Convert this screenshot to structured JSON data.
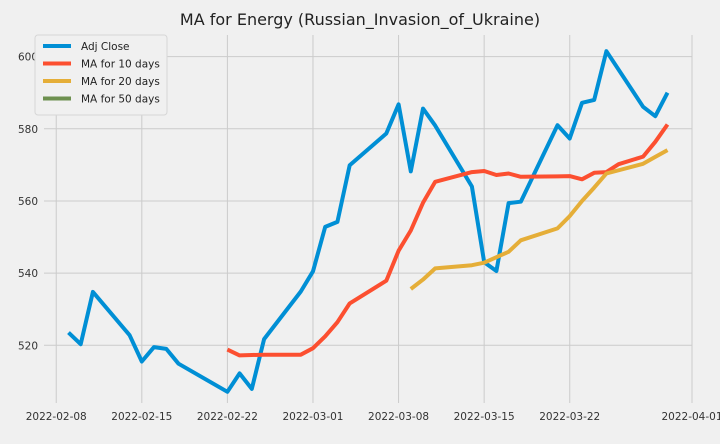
{
  "chart_data": {
    "type": "line",
    "title": "MA for Energy (Russian_Invasion_of_Ukraine)",
    "xlabel": "",
    "ylabel": "",
    "x_is_date": true,
    "xlim": [
      "2022-02-07",
      "2022-04-01"
    ],
    "ylim": [
      504,
      606
    ],
    "x_ticks": [
      "2022-02-08",
      "2022-02-15",
      "2022-02-22",
      "2022-03-01",
      "2022-03-08",
      "2022-03-15",
      "2022-03-22",
      "2022-04-01"
    ],
    "x_tick_labels": [
      "2022-02-08",
      "2022-02-15",
      "2022-02-22",
      "2022-03-01",
      "2022-03-08",
      "2022-03-15",
      "2022-03-22",
      "2022-04-01"
    ],
    "y_ticks": [
      520,
      540,
      560,
      580,
      600
    ],
    "y_tick_labels": [
      "520",
      "540",
      "560",
      "580",
      "600"
    ],
    "grid": true,
    "legend_position": "top-left",
    "series": [
      {
        "name": "Adj Close",
        "color": "#008fd5",
        "points": [
          [
            "2022-02-09",
            523.5
          ],
          [
            "2022-02-10",
            520.3
          ],
          [
            "2022-02-11",
            534.8
          ],
          [
            "2022-02-14",
            522.8
          ],
          [
            "2022-02-15",
            515.5
          ],
          [
            "2022-02-16",
            519.5
          ],
          [
            "2022-02-17",
            519.0
          ],
          [
            "2022-02-18",
            514.9
          ],
          [
            "2022-02-22",
            507.1
          ],
          [
            "2022-02-23",
            512.2
          ],
          [
            "2022-02-24",
            507.9
          ],
          [
            "2022-02-25",
            521.7
          ],
          [
            "2022-02-28",
            534.9
          ],
          [
            "2022-03-01",
            540.5
          ],
          [
            "2022-03-02",
            552.8
          ],
          [
            "2022-03-03",
            554.2
          ],
          [
            "2022-03-04",
            569.9
          ],
          [
            "2022-03-07",
            578.7
          ],
          [
            "2022-03-08",
            586.8
          ],
          [
            "2022-03-09",
            568.2
          ],
          [
            "2022-03-10",
            585.6
          ],
          [
            "2022-03-11",
            580.9
          ],
          [
            "2022-03-14",
            564.0
          ],
          [
            "2022-03-15",
            543.0
          ],
          [
            "2022-03-16",
            540.6
          ],
          [
            "2022-03-17",
            559.4
          ],
          [
            "2022-03-18",
            559.8
          ],
          [
            "2022-03-21",
            581.0
          ],
          [
            "2022-03-22",
            577.3
          ],
          [
            "2022-03-23",
            587.2
          ],
          [
            "2022-03-24",
            588.0
          ],
          [
            "2022-03-25",
            601.5
          ],
          [
            "2022-03-28",
            586.1
          ],
          [
            "2022-03-29",
            583.5
          ],
          [
            "2022-03-30",
            590.0
          ]
        ]
      },
      {
        "name": "MA for 10 days",
        "color": "#fc4f30",
        "points": [
          [
            "2022-02-22",
            518.8
          ],
          [
            "2022-02-23",
            517.2
          ],
          [
            "2022-02-24",
            517.3
          ],
          [
            "2022-02-25",
            517.4
          ],
          [
            "2022-02-28",
            517.4
          ],
          [
            "2022-03-01",
            519.2
          ],
          [
            "2022-03-02",
            522.5
          ],
          [
            "2022-03-03",
            526.4
          ],
          [
            "2022-03-04",
            531.6
          ],
          [
            "2022-03-07",
            537.9
          ],
          [
            "2022-03-08",
            546.2
          ],
          [
            "2022-03-09",
            551.8
          ],
          [
            "2022-03-10",
            559.5
          ],
          [
            "2022-03-11",
            565.3
          ],
          [
            "2022-03-14",
            568.0
          ],
          [
            "2022-03-15",
            568.3
          ],
          [
            "2022-03-16",
            567.2
          ],
          [
            "2022-03-17",
            567.6
          ],
          [
            "2022-03-18",
            566.7
          ],
          [
            "2022-03-21",
            566.8
          ],
          [
            "2022-03-22",
            566.9
          ],
          [
            "2022-03-23",
            566.0
          ],
          [
            "2022-03-24",
            567.8
          ],
          [
            "2022-03-25",
            568.0
          ],
          [
            "2022-03-26",
            570.2
          ],
          [
            "2022-03-28",
            572.3
          ],
          [
            "2022-03-29",
            576.4
          ],
          [
            "2022-03-30",
            581.2
          ]
        ]
      },
      {
        "name": "MA for 20 days",
        "color": "#e5ae38",
        "points": [
          [
            "2022-03-09",
            535.6
          ],
          [
            "2022-03-10",
            538.2
          ],
          [
            "2022-03-11",
            541.3
          ],
          [
            "2022-03-14",
            542.2
          ],
          [
            "2022-03-15",
            542.9
          ],
          [
            "2022-03-16",
            544.4
          ],
          [
            "2022-03-17",
            545.9
          ],
          [
            "2022-03-18",
            549.1
          ],
          [
            "2022-03-21",
            552.4
          ],
          [
            "2022-03-22",
            555.8
          ],
          [
            "2022-03-23",
            560.0
          ],
          [
            "2022-03-24",
            563.7
          ],
          [
            "2022-03-25",
            567.6
          ],
          [
            "2022-03-28",
            570.3
          ],
          [
            "2022-03-29",
            572.2
          ],
          [
            "2022-03-30",
            574.1
          ]
        ]
      },
      {
        "name": "MA for 50 days",
        "color": "#6d904f",
        "points": []
      }
    ]
  }
}
